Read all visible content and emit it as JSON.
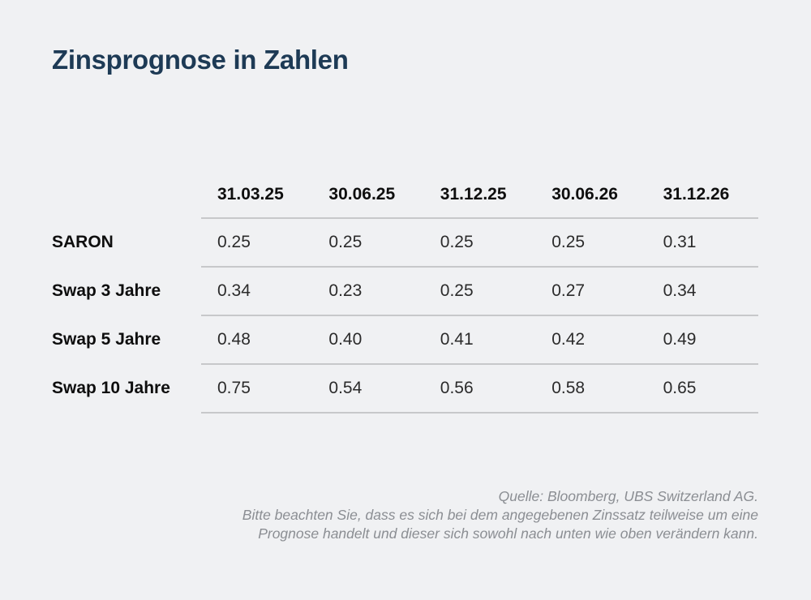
{
  "page": {
    "background_color": "#f0f1f3",
    "accent_color": "#1d3a55",
    "divider_color": "#c7c8ca"
  },
  "title": "Zinsprognose in Zahlen",
  "chart_data": {
    "type": "table",
    "title": "Zinsprognose in Zahlen",
    "columns": [
      "31.03.25",
      "30.06.25",
      "31.12.25",
      "30.06.26",
      "31.12.26"
    ],
    "rows": [
      {
        "label": "SARON",
        "values": [
          "0.25",
          "0.25",
          "0.25",
          "0.25",
          "0.31"
        ]
      },
      {
        "label": "Swap 3 Jahre",
        "values": [
          "0.34",
          "0.23",
          "0.25",
          "0.27",
          "0.34"
        ]
      },
      {
        "label": "Swap 5 Jahre",
        "values": [
          "0.48",
          "0.40",
          "0.41",
          "0.42",
          "0.49"
        ]
      },
      {
        "label": "Swap 10 Jahre",
        "values": [
          "0.75",
          "0.54",
          "0.56",
          "0.58",
          "0.65"
        ]
      }
    ]
  },
  "footer": {
    "lines": [
      "Quelle: Bloomberg, UBS Switzerland AG.",
      "Bitte beachten Sie, dass es sich bei dem angegebenen Zinssatz teilweise um eine",
      "Prognose handelt und dieser sich sowohl nach unten wie oben verändern kann."
    ]
  }
}
